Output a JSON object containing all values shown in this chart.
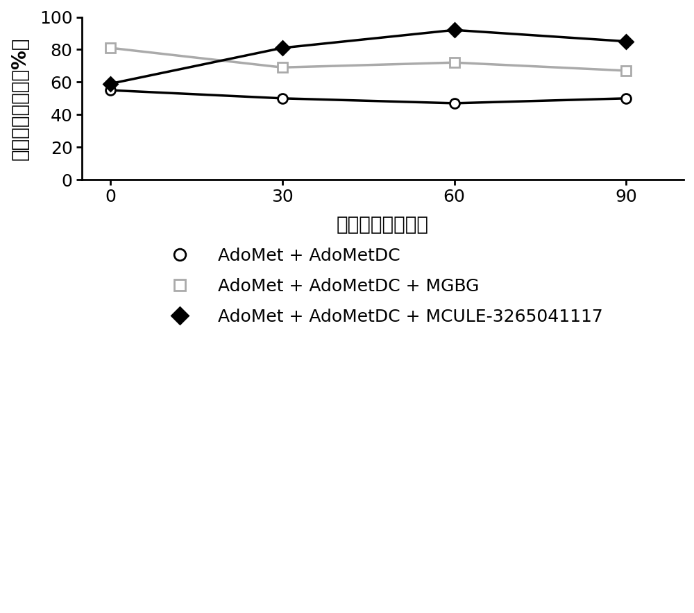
{
  "x": [
    0,
    30,
    60,
    90
  ],
  "series1_y": [
    55,
    50,
    47,
    50
  ],
  "series2_y": [
    81,
    69,
    72,
    67
  ],
  "series3_y": [
    59,
    81,
    92,
    85
  ],
  "series1_label": "AdoMet + AdoMetDC",
  "series2_label": "AdoMet + AdoMetDC + MGBG",
  "series3_label": "AdoMet + AdoMetDC + MCULE-3265041117",
  "series1_color": "black",
  "series2_color": "#aaaaaa",
  "series3_color": "black",
  "xlabel": "孵育时间（分钟）",
  "ylabel": "底物残余百分比（%）",
  "ylim": [
    0,
    100
  ],
  "xlim": [
    -5,
    100
  ],
  "xticks": [
    0,
    30,
    60,
    90
  ],
  "yticks": [
    0,
    20,
    40,
    60,
    80,
    100
  ],
  "background_color": "#ffffff",
  "linewidth": 2.5,
  "markersize": 10,
  "xlabel_fontsize": 20,
  "ylabel_fontsize": 20,
  "tick_fontsize": 18,
  "legend_fontsize": 18
}
